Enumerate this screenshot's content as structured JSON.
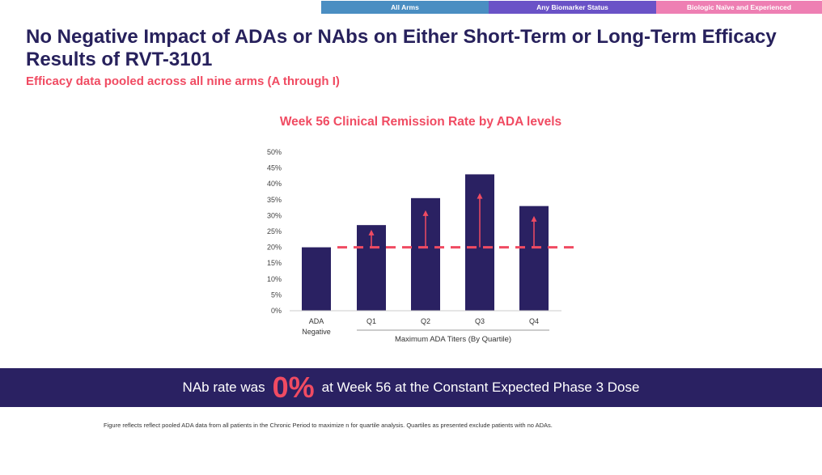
{
  "tabs": [
    {
      "label": "All Arms"
    },
    {
      "label": "Any Biomarker Status"
    },
    {
      "label": "Biologic Naïve and Experienced"
    }
  ],
  "header": {
    "title": "No Negative Impact of ADAs or NAbs on Either Short-Term or Long-Term Efficacy Results of RVT-3101",
    "subtitle": "Efficacy data pooled across all nine arms (A through I)"
  },
  "chart_data": {
    "type": "bar",
    "title": "Week 56 Clinical Remission Rate by ADA levels",
    "categories": [
      "ADA Negative",
      "Q1",
      "Q2",
      "Q3",
      "Q4"
    ],
    "category_lines": [
      [
        "ADA",
        "Negative"
      ],
      [
        "Q1"
      ],
      [
        "Q2"
      ],
      [
        "Q3"
      ],
      [
        "Q4"
      ]
    ],
    "values": [
      20,
      27,
      35.5,
      43,
      33
    ],
    "ylim": [
      0,
      50
    ],
    "yticks": [
      "0%",
      "5%",
      "10%",
      "15%",
      "20%",
      "25%",
      "30%",
      "35%",
      "40%",
      "45%",
      "50%"
    ],
    "reference_line": 20,
    "group_label": "Maximum ADA Titers (By Quartile)",
    "bar_color": "#2a2162",
    "reference_color": "#f04b62",
    "grid": false
  },
  "banner": {
    "prefix": "NAb rate was",
    "value": "0%",
    "suffix": "at Week 56 at the Constant Expected Phase 3 Dose"
  },
  "footnote": "Figure reflects reflect pooled ADA data from all patients in the Chronic Period to maximize n for quartile analysis. Quartiles as presented exclude patients with no ADAs."
}
